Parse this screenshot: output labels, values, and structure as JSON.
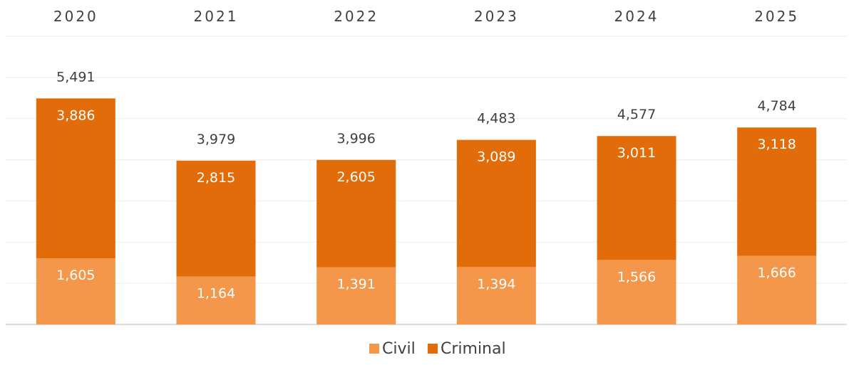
{
  "chart_data": {
    "type": "bar",
    "stacked": true,
    "categories": [
      "2020",
      "2021",
      "2022",
      "2023",
      "2024",
      "2025"
    ],
    "series": [
      {
        "name": "Civil",
        "values": [
          1605,
          1164,
          1391,
          1394,
          1566,
          1666
        ],
        "color": "#F4974A"
      },
      {
        "name": "Criminal",
        "values": [
          3886,
          2815,
          2605,
          3089,
          3011,
          3118
        ],
        "color": "#E36C0A"
      }
    ],
    "totals": [
      5491,
      3979,
      3996,
      4483,
      4577,
      4784
    ],
    "value_labels": {
      "Civil": [
        "1,605",
        "1,164",
        "1,391",
        "1,394",
        "1,566",
        "1,666"
      ],
      "Criminal": [
        "3,886",
        "2,815",
        "2,605",
        "3,089",
        "3,011",
        "3,118"
      ],
      "Total": [
        "5,491",
        "3,979",
        "3,996",
        "4,483",
        "4,577",
        "4,784"
      ]
    },
    "category_axis_position": "top",
    "ylim": [
      0,
      7000
    ],
    "grid": true,
    "legend": "bottom-center",
    "title": "",
    "xlabel": "",
    "ylabel": ""
  }
}
